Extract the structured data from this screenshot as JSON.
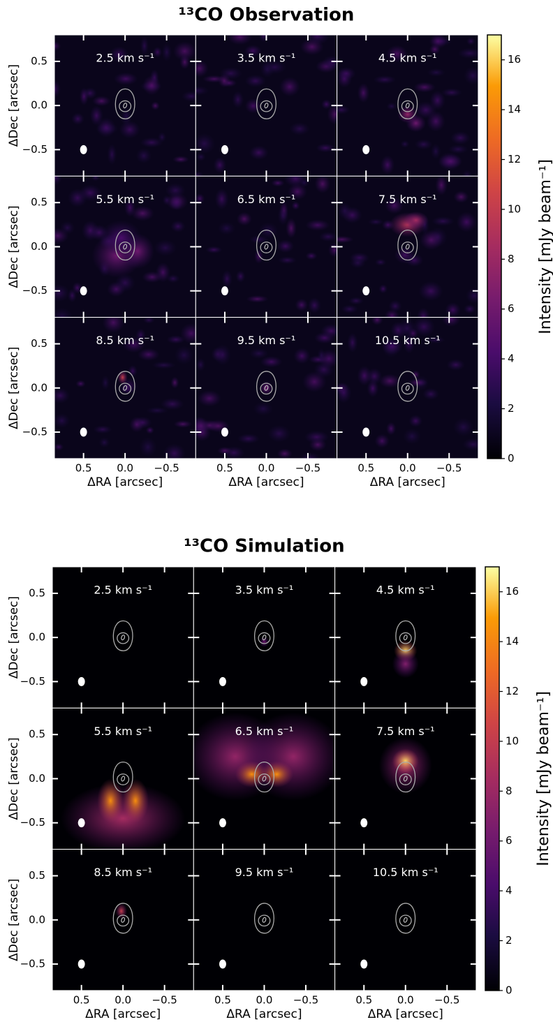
{
  "chart_data": [
    {
      "type": "channel_map",
      "title": "¹³CO Observation",
      "panels": [
        "2.5 km s⁻¹",
        "3.5 km s⁻¹",
        "4.5 km s⁻¹",
        "5.5 km s⁻¹",
        "6.5 km s⁻¹",
        "7.5 km s⁻¹",
        "8.5 km s⁻¹",
        "9.5 km s⁻¹",
        "10.5 km s⁻¹"
      ],
      "xlabel": "ΔRA  [arcsec]",
      "ylabel": "ΔDec  [arcsec]",
      "xlim": [
        0.85,
        -0.85
      ],
      "ylim": [
        -0.8,
        0.8
      ],
      "xticks": [
        0.5,
        {
          "value": 0,
          "label": "0.0"
        },
        {
          "value": -0.5,
          "label": "−0.5"
        }
      ],
      "yticks": [
        {
          "value": -0.5,
          "label": "−0.5"
        },
        {
          "value": 0,
          "label": "0.0"
        },
        0.5
      ],
      "colorbar": {
        "label": "Intensity [mJy beam⁻¹]",
        "lim": [
          0,
          17
        ],
        "ticks": [
          0,
          2,
          4,
          6,
          8,
          10,
          12,
          14,
          16
        ],
        "colormap": "inferno"
      }
    },
    {
      "type": "channel_map",
      "title": "¹³CO Simulation",
      "panels": [
        "2.5 km s⁻¹",
        "3.5 km s⁻¹",
        "4.5 km s⁻¹",
        "5.5 km s⁻¹",
        "6.5 km s⁻¹",
        "7.5 km s⁻¹",
        "8.5 km s⁻¹",
        "9.5 km s⁻¹",
        "10.5 km s⁻¹"
      ],
      "xlabel": "ΔRA  [arcsec]",
      "ylabel": "ΔDec  [arcsec]",
      "xlim": [
        0.85,
        -0.85
      ],
      "ylim": [
        -0.8,
        0.8
      ],
      "xticks": [
        0.5,
        {
          "value": 0,
          "label": "0.0"
        },
        {
          "value": -0.5,
          "label": "−0.5"
        }
      ],
      "yticks": [
        {
          "value": -0.5,
          "label": "−0.5"
        },
        {
          "value": 0,
          "label": "0.0"
        },
        0.5
      ],
      "colorbar": {
        "label": "Intensity [mJy beam⁻¹]",
        "lim": [
          0,
          17
        ],
        "ticks": [
          0,
          2,
          4,
          6,
          8,
          10,
          12,
          14,
          16
        ],
        "colormap": "inferno"
      }
    }
  ]
}
